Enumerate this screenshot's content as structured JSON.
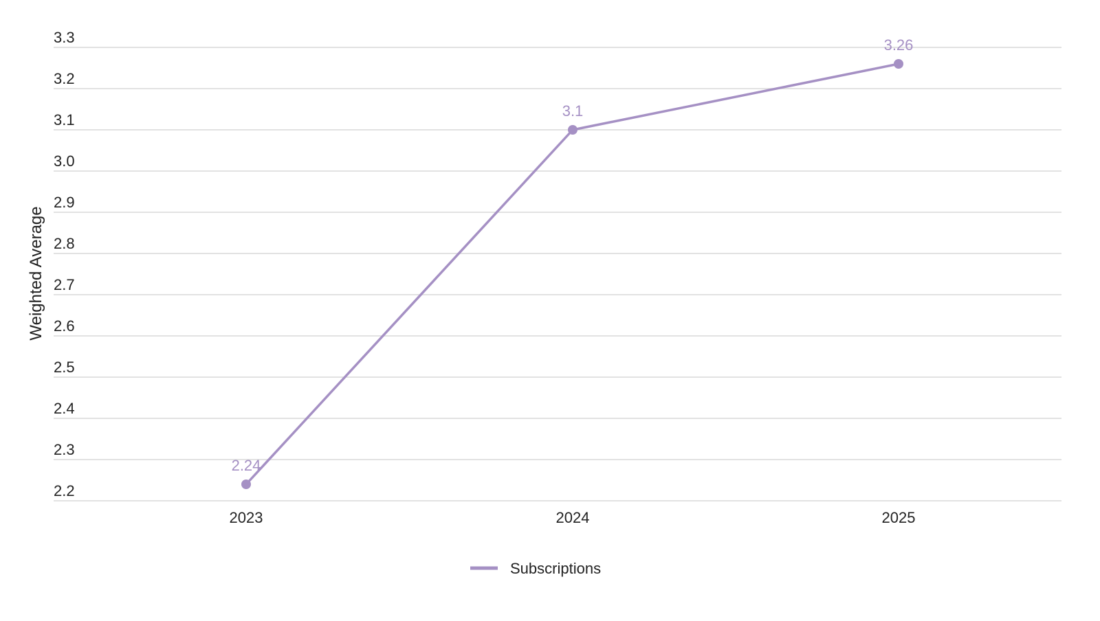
{
  "chart_data": {
    "type": "line",
    "categories": [
      "2023",
      "2024",
      "2025"
    ],
    "series": [
      {
        "name": "Subscriptions",
        "values": [
          2.24,
          3.1,
          3.26
        ],
        "color": "#a590c4"
      }
    ],
    "data_labels": [
      "2.24",
      "3.1",
      "3.26"
    ],
    "ylabel": "Weighted Average",
    "xlabel": "",
    "ylim": [
      2.2,
      3.3
    ],
    "yticks": [
      3.3,
      3.2,
      3.1,
      3.0,
      2.9,
      2.8,
      2.7,
      2.6,
      2.5,
      2.4,
      2.3,
      2.2
    ],
    "ytick_labels": [
      "3.3",
      "3.2",
      "3.1",
      "3.0",
      "2.9",
      "2.8",
      "2.7",
      "2.6",
      "2.5",
      "2.4",
      "2.3",
      "2.2"
    ],
    "grid": true,
    "legend_position": "bottom-center",
    "grid_color": "#d8d8d8",
    "text_color": "#222222"
  }
}
